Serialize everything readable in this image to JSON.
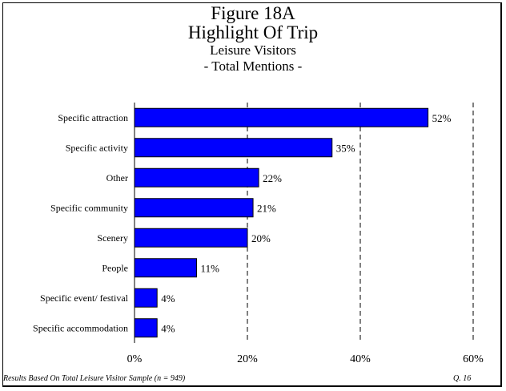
{
  "chart_data": {
    "type": "bar",
    "orientation": "horizontal",
    "title": "Figure 18A",
    "subtitle_lines": [
      "Highlight Of Trip",
      "Leisure Visitors",
      "- Total Mentions -"
    ],
    "categories": [
      "Specific attraction",
      "Specific activity",
      "Other",
      "Specific community",
      "Scenery",
      "People",
      "Specific event/ festival",
      "Specific accommodation"
    ],
    "values": [
      52,
      35,
      22,
      21,
      20,
      11,
      4,
      4
    ],
    "value_labels": [
      "52%",
      "35%",
      "22%",
      "21%",
      "20%",
      "11%",
      "4%",
      "4%"
    ],
    "xlim": [
      0,
      60
    ],
    "xticks": [
      0,
      20,
      40,
      60
    ],
    "xtick_labels": [
      "0%",
      "20%",
      "40%",
      "60%"
    ],
    "grid": "vertical dashed",
    "bar_color": "#0000ff"
  },
  "footer": {
    "left": "Results Based On Total Leisure Visitor Sample (n = 949)",
    "right": "Q. 16"
  }
}
